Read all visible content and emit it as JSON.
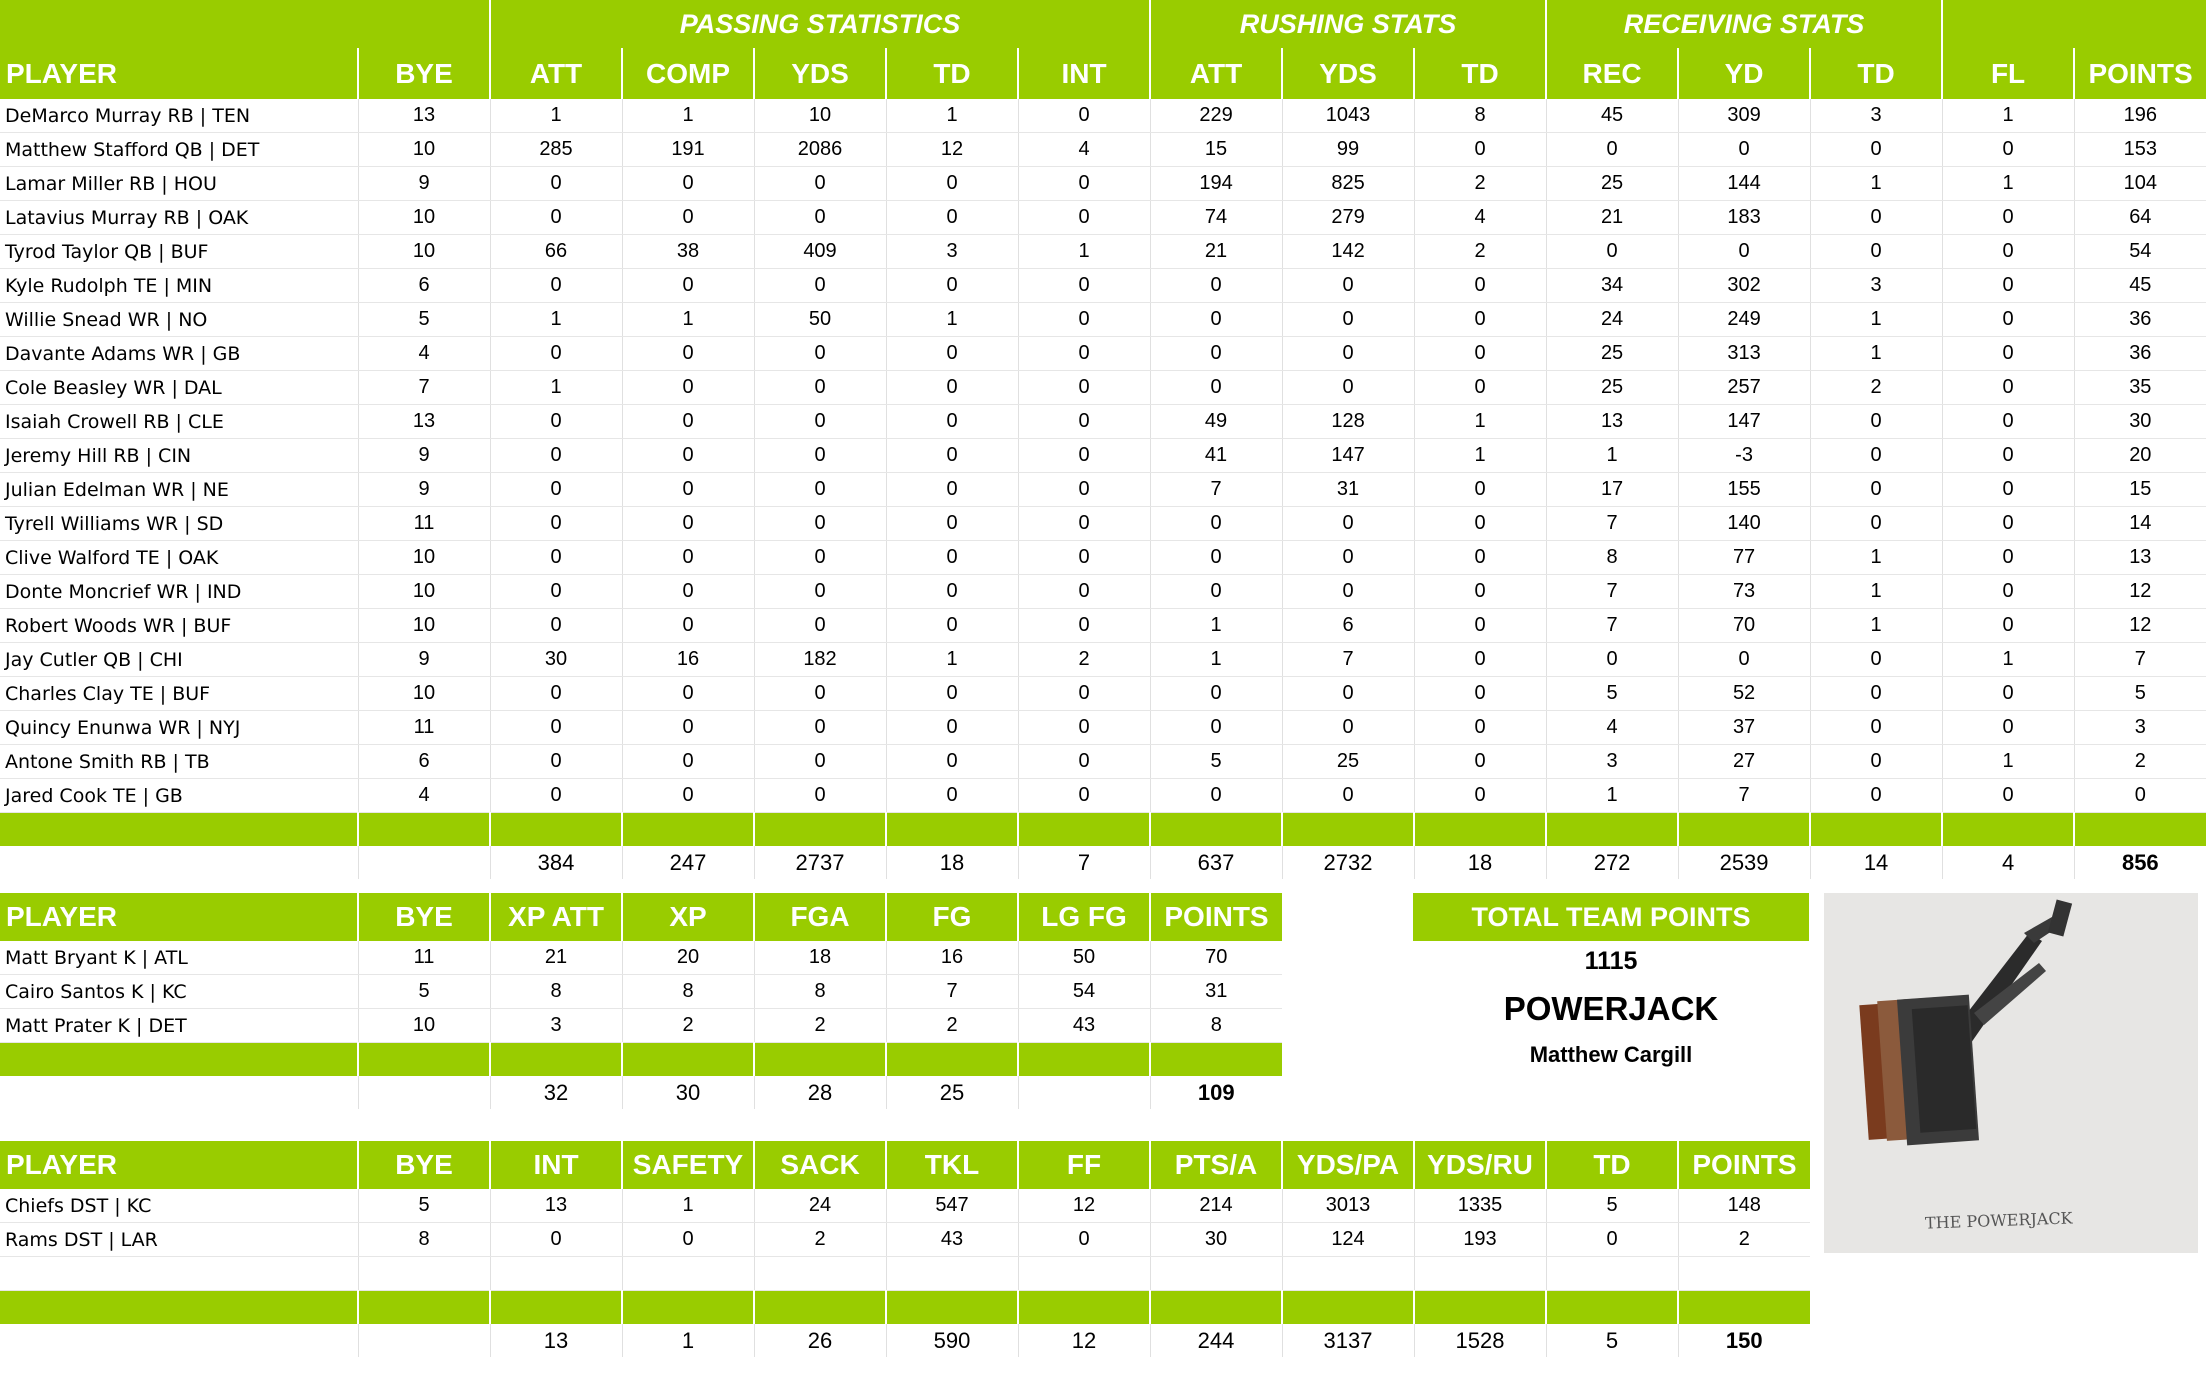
{
  "offense": {
    "sections": {
      "passing": "PASSING STATISTICS",
      "rushing": "RUSHING STATS",
      "receiving": "RECEIVING STATS"
    },
    "headers": [
      "PLAYER",
      "BYE",
      "ATT",
      "COMP",
      "YDS",
      "TD",
      "INT",
      "ATT",
      "YDS",
      "TD",
      "REC",
      "YD",
      "TD",
      "FL",
      "POINTS"
    ],
    "rows": [
      [
        "DeMarco Murray RB | TEN",
        "13",
        "1",
        "1",
        "10",
        "1",
        "0",
        "229",
        "1043",
        "8",
        "45",
        "309",
        "3",
        "1",
        "196"
      ],
      [
        "Matthew Stafford QB | DET",
        "10",
        "285",
        "191",
        "2086",
        "12",
        "4",
        "15",
        "99",
        "0",
        "0",
        "0",
        "0",
        "0",
        "153"
      ],
      [
        "Lamar Miller RB | HOU",
        "9",
        "0",
        "0",
        "0",
        "0",
        "0",
        "194",
        "825",
        "2",
        "25",
        "144",
        "1",
        "1",
        "104"
      ],
      [
        "Latavius Murray RB | OAK",
        "10",
        "0",
        "0",
        "0",
        "0",
        "0",
        "74",
        "279",
        "4",
        "21",
        "183",
        "0",
        "0",
        "64"
      ],
      [
        "Tyrod Taylor QB | BUF",
        "10",
        "66",
        "38",
        "409",
        "3",
        "1",
        "21",
        "142",
        "2",
        "0",
        "0",
        "0",
        "0",
        "54"
      ],
      [
        "Kyle Rudolph TE | MIN",
        "6",
        "0",
        "0",
        "0",
        "0",
        "0",
        "0",
        "0",
        "0",
        "34",
        "302",
        "3",
        "0",
        "45"
      ],
      [
        "Willie Snead WR | NO",
        "5",
        "1",
        "1",
        "50",
        "1",
        "0",
        "0",
        "0",
        "0",
        "24",
        "249",
        "1",
        "0",
        "36"
      ],
      [
        "Davante Adams WR | GB",
        "4",
        "0",
        "0",
        "0",
        "0",
        "0",
        "0",
        "0",
        "0",
        "25",
        "313",
        "1",
        "0",
        "36"
      ],
      [
        "Cole Beasley WR | DAL",
        "7",
        "1",
        "0",
        "0",
        "0",
        "0",
        "0",
        "0",
        "0",
        "25",
        "257",
        "2",
        "0",
        "35"
      ],
      [
        "Isaiah Crowell RB | CLE",
        "13",
        "0",
        "0",
        "0",
        "0",
        "0",
        "49",
        "128",
        "1",
        "13",
        "147",
        "0",
        "0",
        "30"
      ],
      [
        "Jeremy Hill RB | CIN",
        "9",
        "0",
        "0",
        "0",
        "0",
        "0",
        "41",
        "147",
        "1",
        "1",
        "-3",
        "0",
        "0",
        "20"
      ],
      [
        "Julian Edelman WR | NE",
        "9",
        "0",
        "0",
        "0",
        "0",
        "0",
        "7",
        "31",
        "0",
        "17",
        "155",
        "0",
        "0",
        "15"
      ],
      [
        "Tyrell Williams WR | SD",
        "11",
        "0",
        "0",
        "0",
        "0",
        "0",
        "0",
        "0",
        "0",
        "7",
        "140",
        "0",
        "0",
        "14"
      ],
      [
        "Clive Walford TE | OAK",
        "10",
        "0",
        "0",
        "0",
        "0",
        "0",
        "0",
        "0",
        "0",
        "8",
        "77",
        "1",
        "0",
        "13"
      ],
      [
        "Donte Moncrief WR | IND",
        "10",
        "0",
        "0",
        "0",
        "0",
        "0",
        "0",
        "0",
        "0",
        "7",
        "73",
        "1",
        "0",
        "12"
      ],
      [
        "Robert Woods WR | BUF",
        "10",
        "0",
        "0",
        "0",
        "0",
        "0",
        "1",
        "6",
        "0",
        "7",
        "70",
        "1",
        "0",
        "12"
      ],
      [
        "Jay Cutler QB | CHI",
        "9",
        "30",
        "16",
        "182",
        "1",
        "2",
        "1",
        "7",
        "0",
        "0",
        "0",
        "0",
        "1",
        "7"
      ],
      [
        "Charles Clay TE | BUF",
        "10",
        "0",
        "0",
        "0",
        "0",
        "0",
        "0",
        "0",
        "0",
        "5",
        "52",
        "0",
        "0",
        "5"
      ],
      [
        "Quincy Enunwa WR | NYJ",
        "11",
        "0",
        "0",
        "0",
        "0",
        "0",
        "0",
        "0",
        "0",
        "4",
        "37",
        "0",
        "0",
        "3"
      ],
      [
        "Antone Smith RB | TB",
        "6",
        "0",
        "0",
        "0",
        "0",
        "0",
        "5",
        "25",
        "0",
        "3",
        "27",
        "0",
        "1",
        "2"
      ],
      [
        "Jared Cook TE | GB",
        "4",
        "0",
        "0",
        "0",
        "0",
        "0",
        "0",
        "0",
        "0",
        "1",
        "7",
        "0",
        "0",
        "0"
      ]
    ],
    "totals": [
      "",
      "",
      "384",
      "247",
      "2737",
      "18",
      "7",
      "637",
      "2732",
      "18",
      "272",
      "2539",
      "14",
      "4",
      "856"
    ]
  },
  "kickers": {
    "headers": [
      "PLAYER",
      "BYE",
      "XP ATT",
      "XP",
      "FGA",
      "FG",
      "LG FG",
      "POINTS"
    ],
    "rows": [
      [
        "Matt Bryant K | ATL",
        "11",
        "21",
        "20",
        "18",
        "16",
        "50",
        "70"
      ],
      [
        "Cairo Santos K | KC",
        "5",
        "8",
        "8",
        "8",
        "7",
        "54",
        "31"
      ],
      [
        "Matt Prater K | DET",
        "10",
        "3",
        "2",
        "2",
        "2",
        "43",
        "8"
      ]
    ],
    "totals": [
      "",
      "",
      "32",
      "30",
      "28",
      "25",
      "",
      "109"
    ]
  },
  "defense": {
    "headers": [
      "PLAYER",
      "BYE",
      "INT",
      "SAFETY",
      "SACK",
      "TKL",
      "FF",
      "PTS/A",
      "YDS/PA",
      "YDS/RU",
      "TD",
      "POINTS"
    ],
    "rows": [
      [
        "Chiefs DST | KC",
        "5",
        "13",
        "1",
        "24",
        "547",
        "12",
        "214",
        "3013",
        "1335",
        "5",
        "148"
      ],
      [
        "Rams DST | LAR",
        "8",
        "0",
        "0",
        "2",
        "43",
        "0",
        "30",
        "124",
        "193",
        "0",
        "2"
      ]
    ],
    "totals": [
      "",
      "",
      "13",
      "1",
      "26",
      "590",
      "12",
      "244",
      "3137",
      "1528",
      "5",
      "150"
    ]
  },
  "summary": {
    "title": "TOTAL TEAM POINTS",
    "points": "1115",
    "team_name": "POWERJACK",
    "owner": "Matthew Cargill"
  },
  "logo": {
    "icon": "powerjack-icon",
    "caption": "THE POWERJACK"
  },
  "colors": {
    "accent": "#99cc00",
    "header_text": "#ffffff"
  }
}
